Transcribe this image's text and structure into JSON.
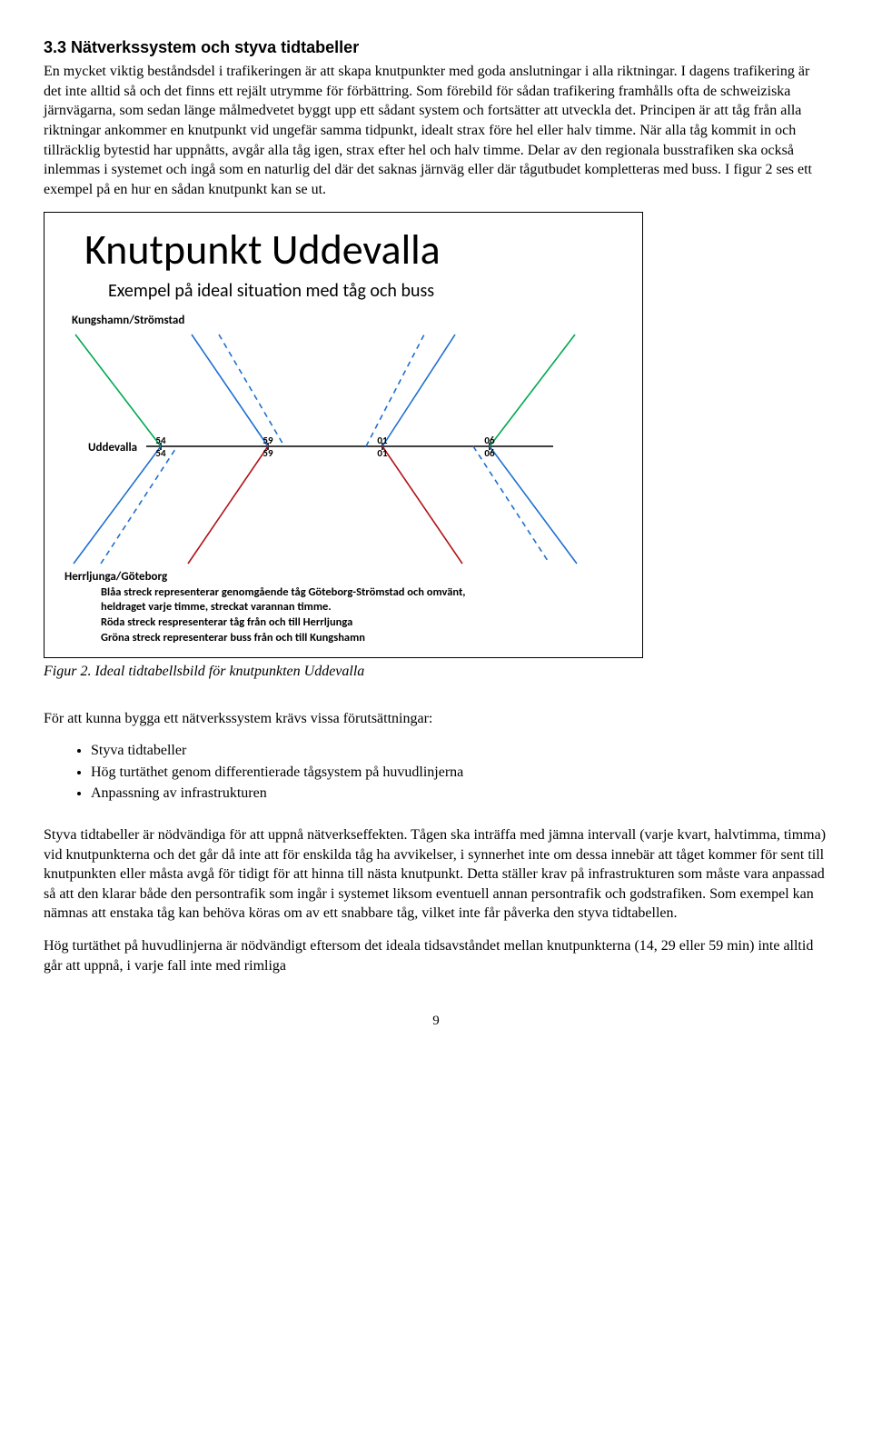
{
  "section": {
    "number": "3.3",
    "title": "Nätverkssystem och styva tidtabeller"
  },
  "para1": "En mycket viktig beståndsdel i trafikeringen är att skapa knutpunkter med goda anslutningar i alla riktningar. I dagens trafikering är det inte alltid så och det finns ett rejält utrymme för förbättring. Som förebild för sådan trafikering framhålls ofta de schweiziska järnvägarna, som sedan länge målmedvetet byggt upp ett sådant system och fortsätter att utveckla det. Principen är att tåg från alla riktningar ankommer en knutpunkt vid ungefär samma tidpunkt, idealt strax före hel eller halv timme. När alla tåg kommit in och tillräcklig bytestid har uppnåtts, avgår alla tåg igen, strax efter hel och halv timme. Delar av den regionala busstrafiken ska också inlemmas i systemet och ingå som en naturlig del där det saknas järnväg eller där tågutbudet kompletteras med buss. I figur 2 ses ett exempel på en hur en sådan knutpunkt kan se ut.",
  "diagram": {
    "title": "Knutpunkt Uddevalla",
    "subtitle": "Exempel på ideal situation med tåg och buss",
    "label_top": "Kungshamn/Strömstad",
    "label_left": "Uddevalla",
    "label_bottom": "Herrljunga/Göteborg",
    "axis_top": [
      "54",
      "59",
      "01",
      "06"
    ],
    "axis_bottom": [
      "54",
      "59",
      "01",
      "06"
    ],
    "colors": {
      "green": "#00a84f",
      "blue": "#1f6fd1",
      "red": "#b01117",
      "black": "#000000"
    },
    "line_width": 1.6,
    "dash": "6,5",
    "legend": {
      "l1": "Blåa streck representerar genomgående tåg Göteborg-Strömstad och omvänt,",
      "l2": "heldraget varje timme, streckat varannan timme.",
      "l3": "Röda streck respresenterar tåg från och till Herrljunga",
      "l4": "Gröna streck representerar buss från och till Kungshamn"
    }
  },
  "figure_caption": "Figur 2. Ideal tidtabellsbild för knutpunkten Uddevalla",
  "para2_intro": "För att kunna bygga ett nätverkssystem krävs vissa förutsättningar:",
  "bullets": {
    "b1": "Styva tidtabeller",
    "b2": "Hög turtäthet genom differentierade tågsystem på huvudlinjerna",
    "b3": "Anpassning av infrastrukturen"
  },
  "para3": "Styva tidtabeller är nödvändiga för att uppnå nätverkseffekten. Tågen ska inträffa med jämna intervall (varje kvart, halvtimma, timma) vid knutpunkterna och det går då inte att för enskilda tåg ha avvikelser, i synnerhet inte om dessa innebär att tåget kommer för sent till knutpunkten eller måsta avgå för tidigt för att hinna till nästa knutpunkt. Detta ställer krav på infrastrukturen som måste vara anpassad så att den klarar både den persontrafik som ingår i systemet liksom eventuell annan persontrafik och godstrafiken. Som exempel kan nämnas att enstaka tåg kan behöva köras om av ett snabbare tåg, vilket inte får påverka den styva tidtabellen.",
  "para4": "Hög turtäthet på huvudlinjerna är nödvändigt eftersom det ideala tidsavståndet mellan knutpunkterna (14, 29 eller 59 min) inte alltid går att uppnå, i varje fall inte med rimliga",
  "page_number": "9"
}
